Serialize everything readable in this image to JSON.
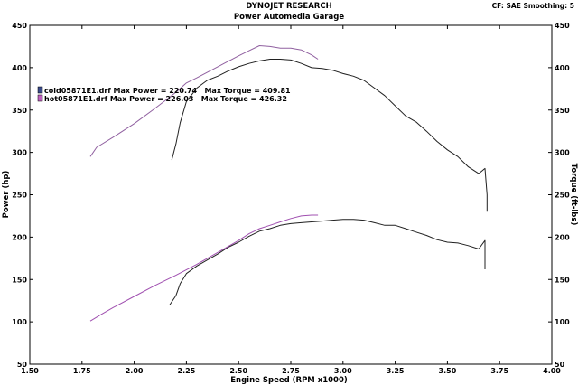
{
  "header": {
    "title": "DYNOJET RESEARCH",
    "subtitle": "Power Automedia Garage",
    "info": "CF: SAE  Smoothing: 5"
  },
  "chart_data": {
    "type": "line",
    "xlabel": "Engine Speed (RPM x1000)",
    "ylabel_left": "Power (hp)",
    "ylabel_right": "Torque (ft-lbs)",
    "xlim": [
      1.5,
      4.0
    ],
    "ylim": [
      50,
      450
    ],
    "x_ticks": [
      "1.50",
      "1.75",
      "2.00",
      "2.25",
      "2.50",
      "2.75",
      "3.00",
      "3.25",
      "3.50",
      "3.75",
      "4.00"
    ],
    "y_ticks": [
      "50",
      "100",
      "150",
      "200",
      "250",
      "300",
      "350",
      "400",
      "450"
    ],
    "grid": false,
    "legend": [
      {
        "text": "cold05871E1.drf Max Power = 220.74   Max Torque = 409.81",
        "color": "#3a4a8a"
      },
      {
        "text": "hot05871E1.drf Max Power = 226.03   Max Torque = 426.32",
        "color": "#c060c0"
      }
    ],
    "series": [
      {
        "role": "cold-torque",
        "color": "#202020",
        "points": [
          [
            2.18,
            291
          ],
          [
            2.2,
            310
          ],
          [
            2.22,
            335
          ],
          [
            2.25,
            360
          ],
          [
            2.3,
            376
          ],
          [
            2.35,
            385
          ],
          [
            2.4,
            390
          ],
          [
            2.45,
            396
          ],
          [
            2.5,
            401
          ],
          [
            2.55,
            405
          ],
          [
            2.6,
            408
          ],
          [
            2.65,
            410
          ],
          [
            2.7,
            410
          ],
          [
            2.75,
            409
          ],
          [
            2.8,
            405
          ],
          [
            2.85,
            400
          ],
          [
            2.9,
            399
          ],
          [
            2.95,
            397
          ],
          [
            3.0,
            393
          ],
          [
            3.05,
            390
          ],
          [
            3.1,
            385
          ],
          [
            3.15,
            376
          ],
          [
            3.2,
            367
          ],
          [
            3.25,
            355
          ],
          [
            3.3,
            343
          ],
          [
            3.35,
            336
          ],
          [
            3.4,
            325
          ],
          [
            3.45,
            313
          ],
          [
            3.5,
            303
          ],
          [
            3.55,
            295
          ],
          [
            3.6,
            283
          ],
          [
            3.65,
            275
          ],
          [
            3.68,
            281
          ],
          [
            3.69,
            250
          ],
          [
            3.69,
            230
          ]
        ]
      },
      {
        "role": "hot-torque",
        "color": "#9060a0",
        "points": [
          [
            1.79,
            295
          ],
          [
            1.82,
            306
          ],
          [
            1.9,
            318
          ],
          [
            2.0,
            334
          ],
          [
            2.1,
            352
          ],
          [
            2.2,
            371
          ],
          [
            2.25,
            382
          ],
          [
            2.3,
            388
          ],
          [
            2.4,
            401
          ],
          [
            2.5,
            414
          ],
          [
            2.55,
            420
          ],
          [
            2.6,
            426
          ],
          [
            2.65,
            425
          ],
          [
            2.7,
            423
          ],
          [
            2.75,
            423
          ],
          [
            2.8,
            421
          ],
          [
            2.85,
            415
          ],
          [
            2.88,
            410
          ]
        ]
      },
      {
        "role": "cold-power",
        "color": "#202020",
        "points": [
          [
            2.17,
            120
          ],
          [
            2.2,
            131
          ],
          [
            2.22,
            145
          ],
          [
            2.25,
            157
          ],
          [
            2.3,
            166
          ],
          [
            2.35,
            173
          ],
          [
            2.4,
            180
          ],
          [
            2.45,
            188
          ],
          [
            2.5,
            194
          ],
          [
            2.55,
            201
          ],
          [
            2.6,
            207
          ],
          [
            2.65,
            210
          ],
          [
            2.7,
            214
          ],
          [
            2.75,
            216
          ],
          [
            2.8,
            217
          ],
          [
            2.85,
            218
          ],
          [
            2.9,
            219
          ],
          [
            2.95,
            220
          ],
          [
            3.0,
            221
          ],
          [
            3.05,
            221
          ],
          [
            3.1,
            220
          ],
          [
            3.15,
            217
          ],
          [
            3.2,
            214
          ],
          [
            3.25,
            214
          ],
          [
            3.3,
            210
          ],
          [
            3.35,
            206
          ],
          [
            3.4,
            202
          ],
          [
            3.45,
            197
          ],
          [
            3.5,
            194
          ],
          [
            3.55,
            193
          ],
          [
            3.6,
            190
          ],
          [
            3.65,
            186
          ],
          [
            3.68,
            196
          ],
          [
            3.68,
            175
          ],
          [
            3.68,
            162
          ]
        ]
      },
      {
        "role": "hot-power",
        "color": "#a050b0",
        "points": [
          [
            1.79,
            101
          ],
          [
            1.85,
            110
          ],
          [
            1.9,
            117
          ],
          [
            2.0,
            130
          ],
          [
            2.1,
            143
          ],
          [
            2.2,
            155
          ],
          [
            2.3,
            168
          ],
          [
            2.4,
            182
          ],
          [
            2.5,
            196
          ],
          [
            2.55,
            204
          ],
          [
            2.6,
            210
          ],
          [
            2.65,
            214
          ],
          [
            2.7,
            218
          ],
          [
            2.75,
            222
          ],
          [
            2.8,
            225
          ],
          [
            2.85,
            226
          ],
          [
            2.88,
            226
          ]
        ]
      }
    ]
  }
}
